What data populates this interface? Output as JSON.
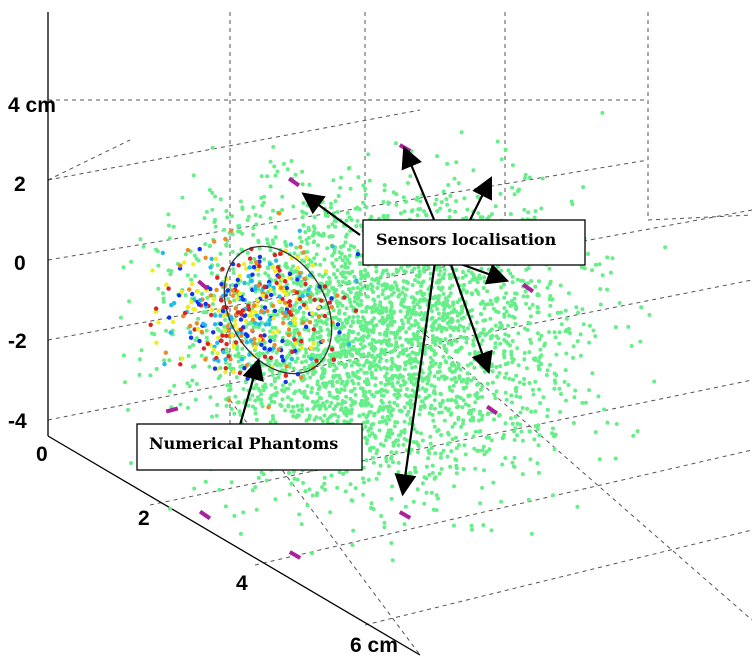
{
  "chart_data": {
    "type": "scatter",
    "dimensions": 3,
    "z_ticks": [
      "4 cm",
      "2",
      "0",
      "-2",
      "-4"
    ],
    "x_ticks": [
      "0",
      "2",
      "4",
      "6 cm"
    ],
    "zlim": [
      -4,
      5
    ],
    "xlim": [
      0,
      6
    ],
    "grid": true,
    "colors": {
      "background_points": "#66ee88",
      "phantom_points": [
        "#1133ee",
        "#22bbee",
        "#ee8822",
        "#dd2222",
        "#eeee22"
      ],
      "sensors": "#aa2299"
    },
    "annotations": [
      {
        "text": "Sensors localisation"
      },
      {
        "text": "Numerical Phantoms"
      }
    ],
    "sensor_count": 9,
    "phantom_ellipse": true
  }
}
